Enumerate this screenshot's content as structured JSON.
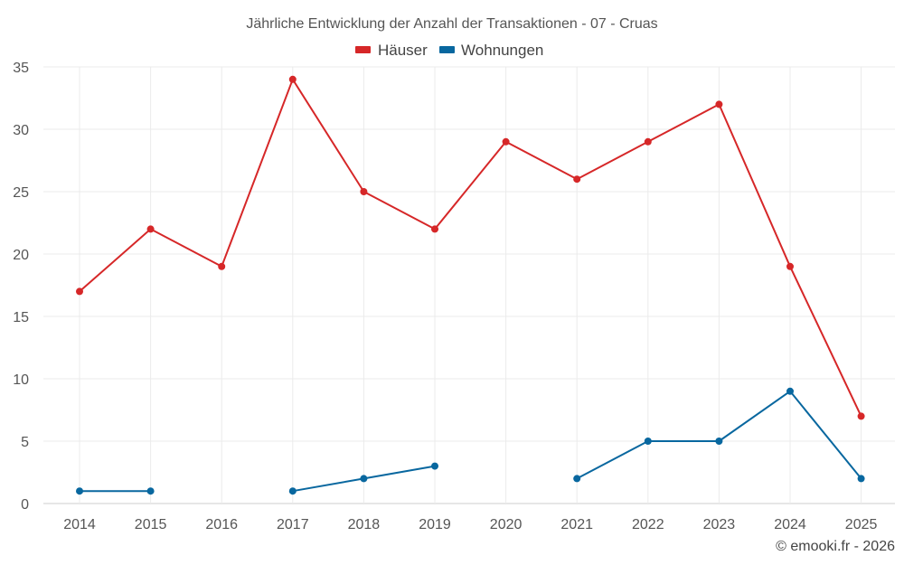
{
  "chart_data": {
    "type": "line",
    "title": "Jährliche Entwicklung der Anzahl der Transaktionen - 07 - Cruas",
    "categories": [
      "2014",
      "2015",
      "2016",
      "2017",
      "2018",
      "2019",
      "2020",
      "2021",
      "2022",
      "2023",
      "2024",
      "2025"
    ],
    "series": [
      {
        "name": "Häuser",
        "color": "#d62728",
        "values": [
          17,
          22,
          19,
          34,
          25,
          22,
          29,
          26,
          29,
          32,
          19,
          7
        ]
      },
      {
        "name": "Wohnungen",
        "color": "#08679f",
        "values": [
          1,
          1,
          null,
          1,
          2,
          3,
          null,
          2,
          5,
          5,
          9,
          2
        ]
      }
    ],
    "ylim": [
      0,
      35
    ],
    "yticks": [
      0,
      5,
      10,
      15,
      20,
      25,
      30,
      35
    ],
    "xlabel": "",
    "ylabel": "",
    "grid": true,
    "legend": "top-center"
  },
  "credit": "© emooki.fr - 2026"
}
